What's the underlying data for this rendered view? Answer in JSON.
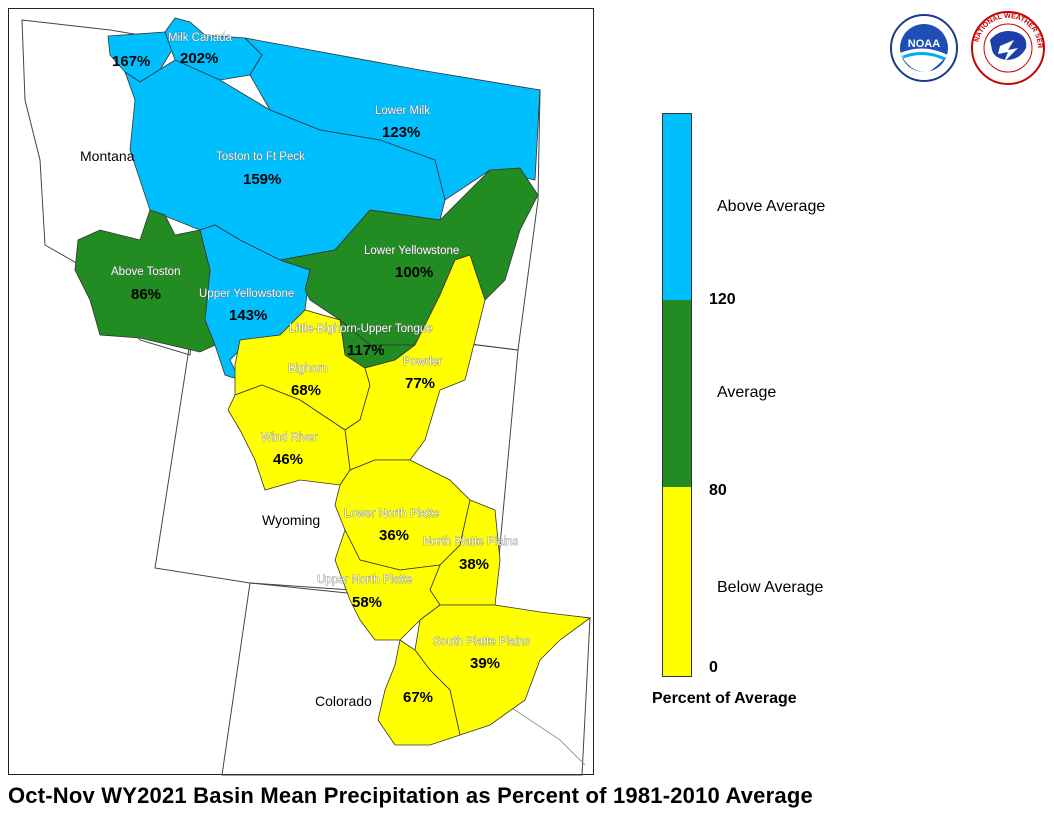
{
  "title": "Oct-Nov WY2021 Basin Mean Precipitation as Percent of 1981-2010 Average",
  "colors": {
    "above": "#00BFFF",
    "average": "#228B22",
    "below": "#FFFF00",
    "boundary": "#444444"
  },
  "states": [
    {
      "name": "Montana"
    },
    {
      "name": "Wyoming"
    },
    {
      "name": "Colorado"
    }
  ],
  "basins": [
    {
      "name": "",
      "value": "167%",
      "class": "above"
    },
    {
      "name": "Milk Canada",
      "value": "202%",
      "class": "above"
    },
    {
      "name": "Lower Milk",
      "value": "123%",
      "class": "above"
    },
    {
      "name": "Toston to Ft Peck",
      "value": "159%",
      "class": "above"
    },
    {
      "name": "Above Toston",
      "value": "86%",
      "class": "average"
    },
    {
      "name": "Lower Yellowstone",
      "value": "100%",
      "class": "average"
    },
    {
      "name": "Upper Yellowstone",
      "value": "143%",
      "class": "above"
    },
    {
      "name": "Little-Bighorn-Upper Tongue",
      "value": "117%",
      "class": "average"
    },
    {
      "name": "Bighorn",
      "value": "68%",
      "class": "below"
    },
    {
      "name": "Powder",
      "value": "77%",
      "class": "below"
    },
    {
      "name": "Wind River",
      "value": "46%",
      "class": "below"
    },
    {
      "name": "Lower North Platte",
      "value": "36%",
      "class": "below"
    },
    {
      "name": "North Platte Plains",
      "value": "38%",
      "class": "below"
    },
    {
      "name": "Upper North Platte",
      "value": "58%",
      "class": "below"
    },
    {
      "name": "South Platte Plains",
      "value": "39%",
      "class": "below"
    },
    {
      "name": "",
      "value": "67%",
      "class": "below"
    }
  ],
  "legend": {
    "title": "Percent of Average",
    "categories": [
      {
        "label": "Above Average",
        "color": "#00BFFF"
      },
      {
        "label": "Average",
        "color": "#228B22"
      },
      {
        "label": "Below Average",
        "color": "#FFFF00"
      }
    ],
    "ticks": [
      "120",
      "80",
      "0"
    ]
  },
  "logos": [
    {
      "name": "NOAA",
      "text": "NOAA"
    },
    {
      "name": "National Weather Service",
      "text": "NATIONAL WEATHER SERVICE"
    }
  ]
}
